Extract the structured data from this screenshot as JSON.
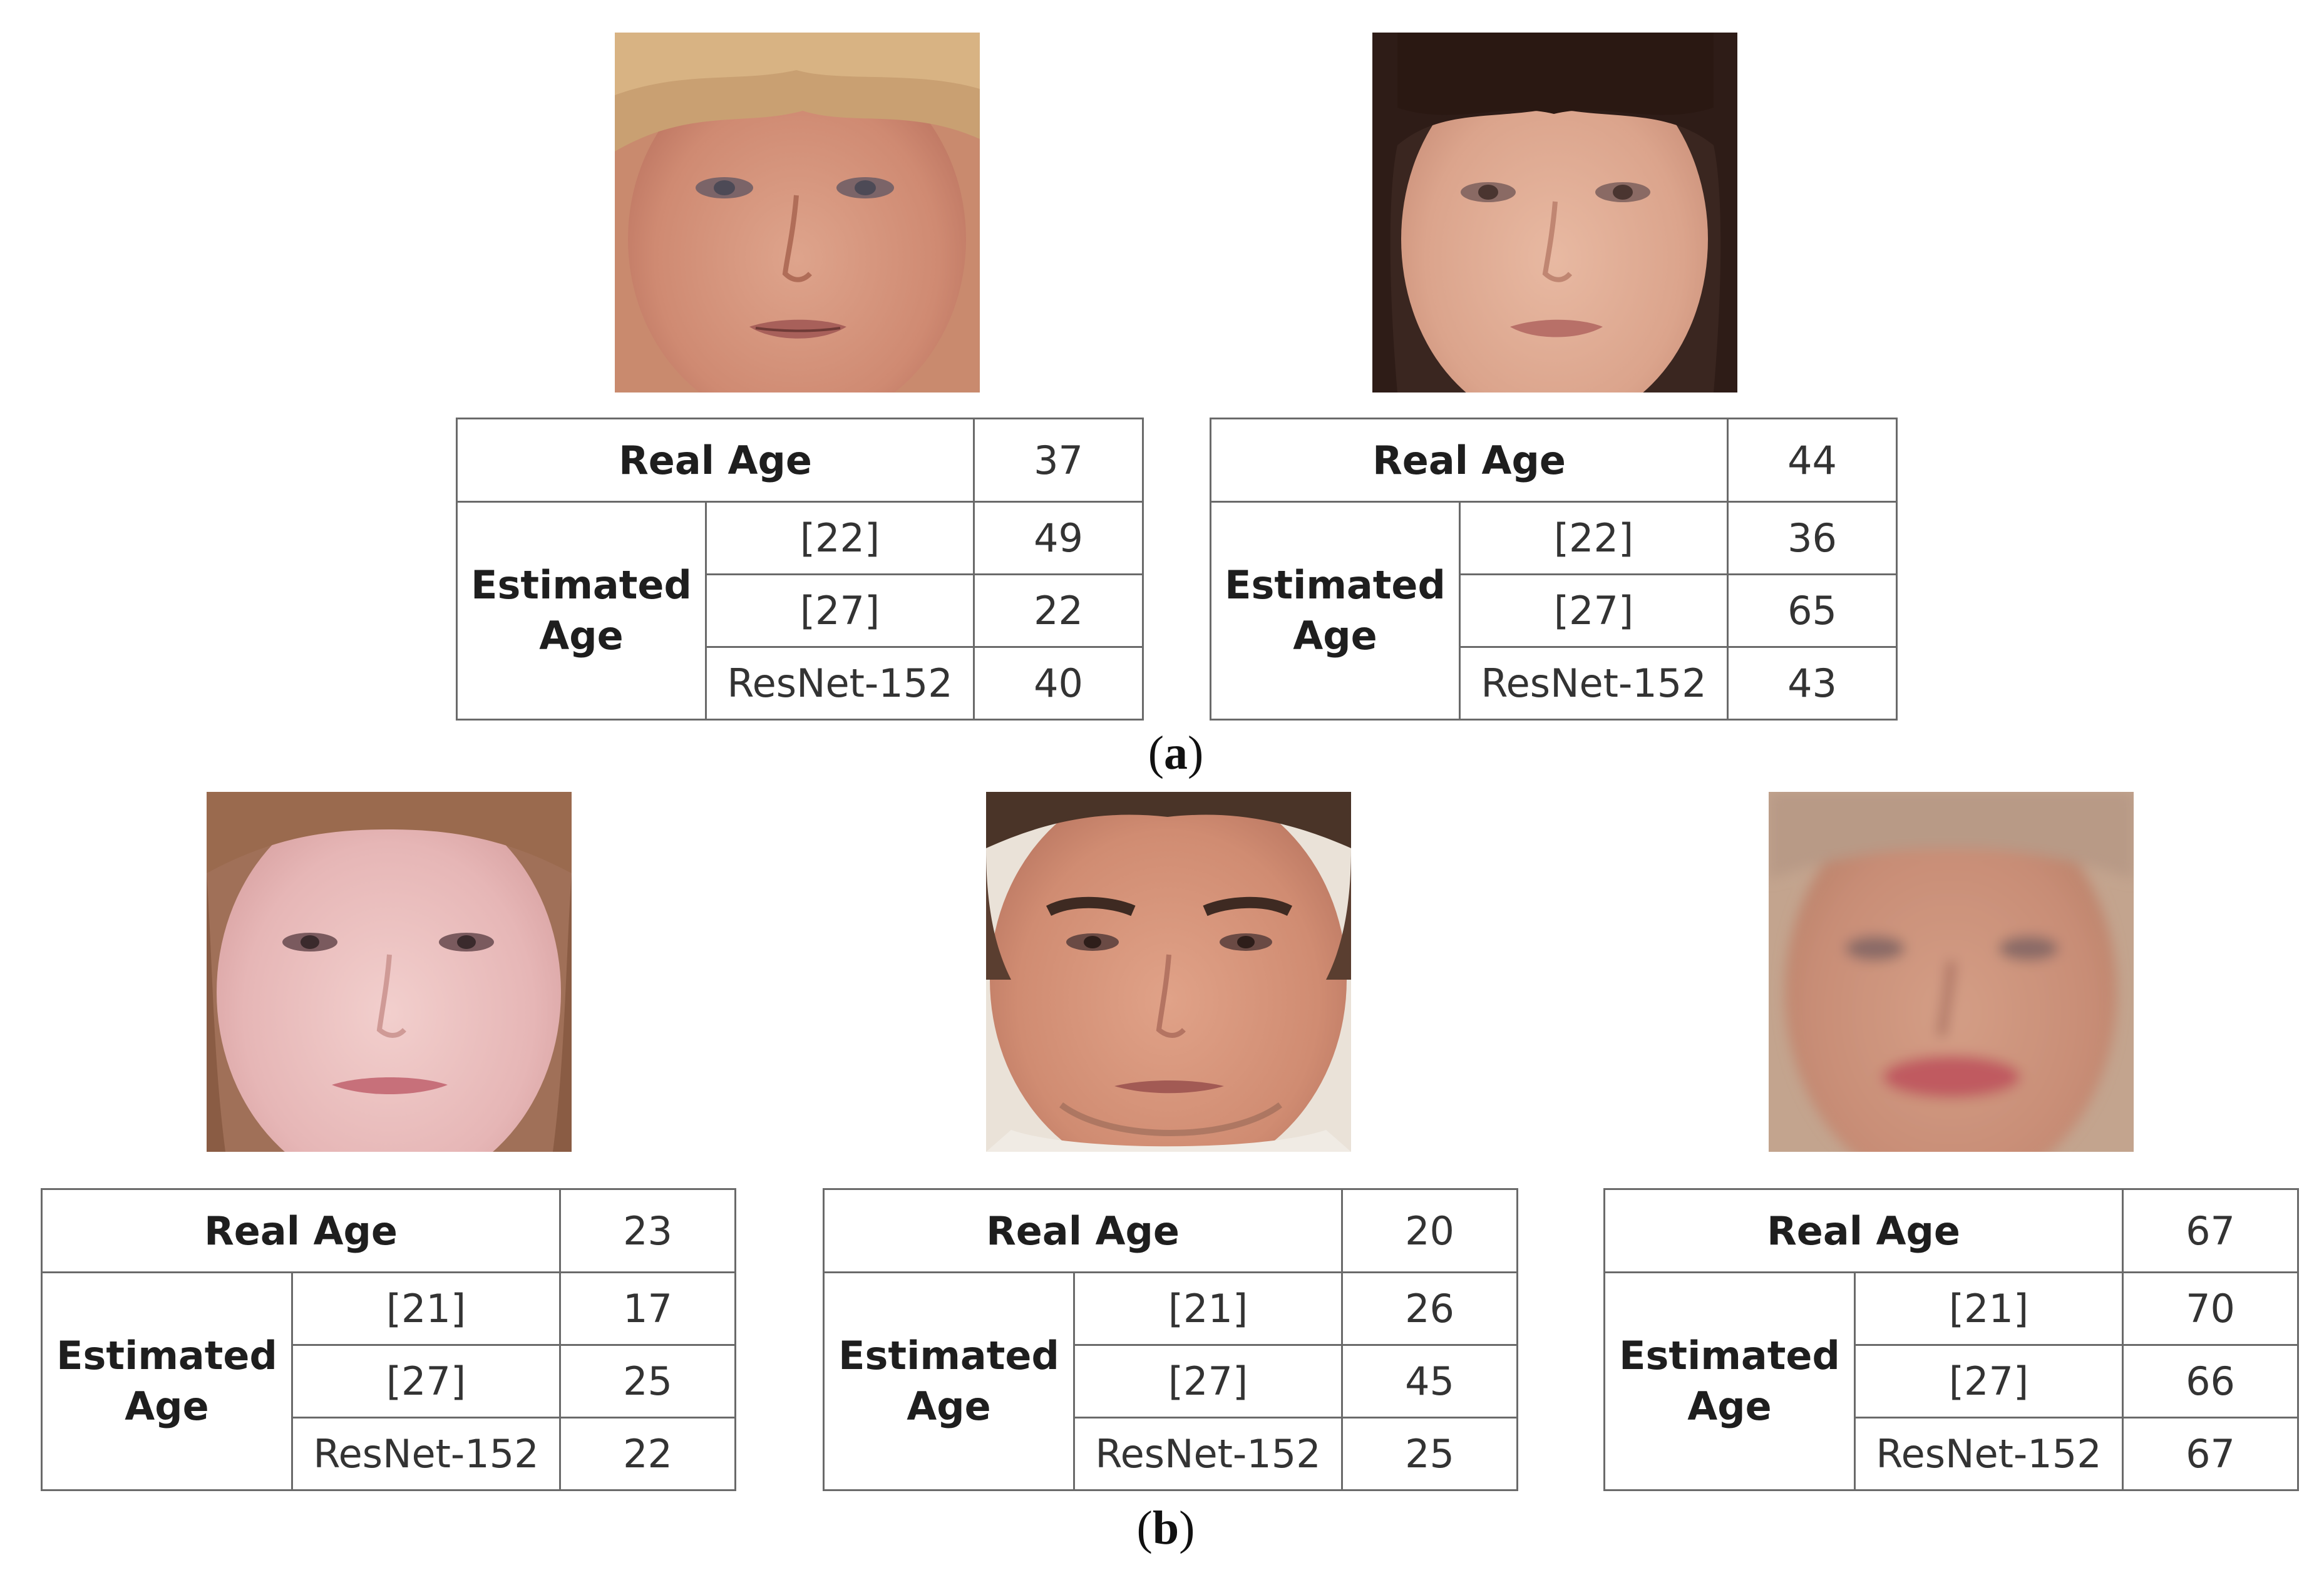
{
  "panels": [
    {
      "caption_letter": "a",
      "cases": [
        {
          "face_icon": "face-photo-woman-blonde",
          "real_age_label": "Real Age",
          "real_age": "37",
          "estimated_label_line1": "Estimated",
          "estimated_label_line2": "Age",
          "estimates": [
            {
              "method": "[22]",
              "value": "49"
            },
            {
              "method": "[27]",
              "value": "22"
            },
            {
              "method": "ResNet-152",
              "value": "40"
            }
          ]
        },
        {
          "face_icon": "face-photo-woman-dark-hair",
          "real_age_label": "Real Age",
          "real_age": "44",
          "estimated_label_line1": "Estimated",
          "estimated_label_line2": "Age",
          "estimates": [
            {
              "method": "[22]",
              "value": "36"
            },
            {
              "method": "[27]",
              "value": "65"
            },
            {
              "method": "ResNet-152",
              "value": "43"
            }
          ]
        }
      ]
    },
    {
      "caption_letter": "b",
      "cases": [
        {
          "face_icon": "face-photo-young-woman",
          "real_age_label": "Real Age",
          "real_age": "23",
          "estimated_label_line1": "Estimated",
          "estimated_label_line2": "Age",
          "estimates": [
            {
              "method": "[21]",
              "value": "17"
            },
            {
              "method": "[27]",
              "value": "25"
            },
            {
              "method": "ResNet-152",
              "value": "22"
            }
          ]
        },
        {
          "face_icon": "face-photo-young-man",
          "real_age_label": "Real Age",
          "real_age": "20",
          "estimated_label_line1": "Estimated",
          "estimated_label_line2": "Age",
          "estimates": [
            {
              "method": "[21]",
              "value": "26"
            },
            {
              "method": "[27]",
              "value": "45"
            },
            {
              "method": "ResNet-152",
              "value": "25"
            }
          ]
        },
        {
          "face_icon": "face-photo-older-person-blurred",
          "real_age_label": "Real Age",
          "real_age": "67",
          "estimated_label_line1": "Estimated",
          "estimated_label_line2": "Age",
          "estimates": [
            {
              "method": "[21]",
              "value": "70"
            },
            {
              "method": "[27]",
              "value": "66"
            },
            {
              "method": "ResNet-152",
              "value": "67"
            }
          ]
        }
      ]
    }
  ]
}
